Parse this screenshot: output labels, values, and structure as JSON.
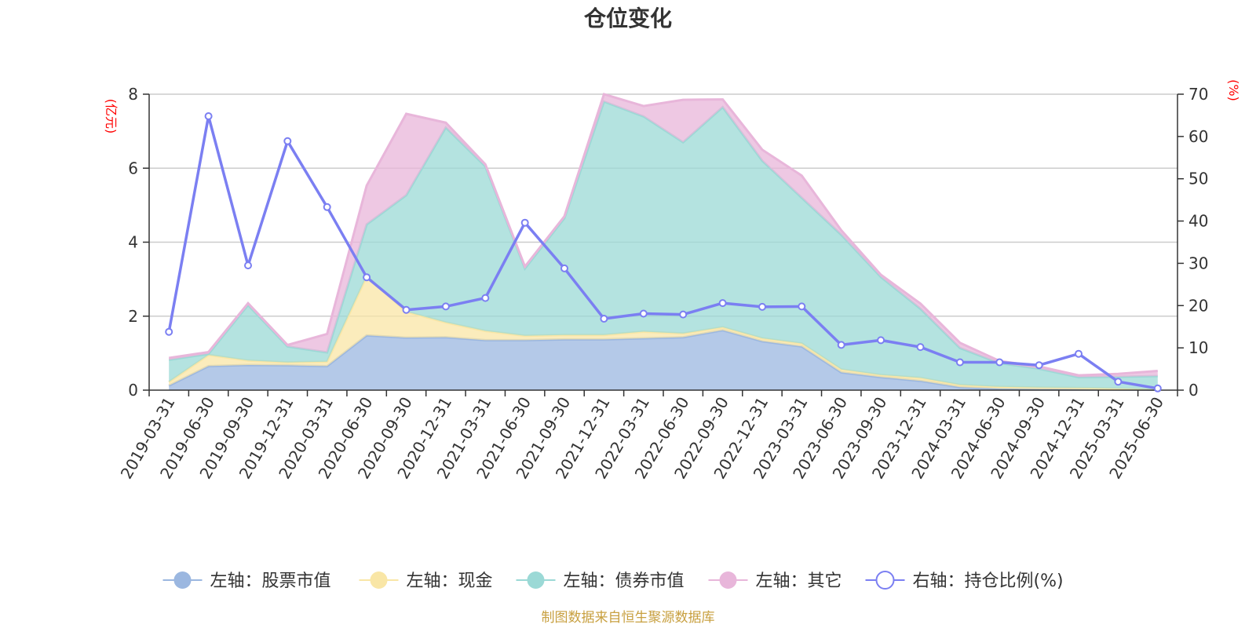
{
  "chart_data": {
    "type": "area",
    "title": "仓位变化",
    "left_axis_unit": "(亿元)",
    "right_axis_unit": "(%)",
    "left_ylim": [
      0,
      8
    ],
    "left_ticks": [
      0,
      2,
      4,
      6,
      8
    ],
    "right_ylim": [
      0,
      70
    ],
    "right_ticks": [
      0,
      10,
      20,
      30,
      40,
      50,
      60,
      70
    ],
    "categories": [
      "2019-03-31",
      "2019-06-30",
      "2019-09-30",
      "2019-12-31",
      "2020-03-31",
      "2020-06-30",
      "2020-09-30",
      "2020-12-31",
      "2021-03-31",
      "2021-06-30",
      "2021-09-30",
      "2021-12-31",
      "2022-03-31",
      "2022-06-30",
      "2022-09-30",
      "2022-12-31",
      "2023-03-31",
      "2023-06-30",
      "2023-09-30",
      "2023-12-31",
      "2024-03-31",
      "2024-06-30",
      "2024-09-30",
      "2024-12-31",
      "2025-03-31",
      "2025-06-30"
    ],
    "grid": true,
    "legend_position": "bottom",
    "series": [
      {
        "name": "左轴：股票市值",
        "axis": "left",
        "stacked": true,
        "color": "#9bb7e0",
        "values": [
          0.12,
          0.65,
          0.68,
          0.67,
          0.65,
          1.48,
          1.42,
          1.43,
          1.35,
          1.35,
          1.37,
          1.37,
          1.4,
          1.43,
          1.62,
          1.32,
          1.18,
          0.48,
          0.35,
          0.25,
          0.08,
          0.04,
          0.03,
          0.03,
          0.02,
          0.01
        ]
      },
      {
        "name": "左轴：现金",
        "axis": "left",
        "stacked": true,
        "color": "#f9e6a6",
        "values": [
          0.1,
          0.3,
          0.12,
          0.08,
          0.12,
          1.6,
          0.7,
          0.4,
          0.25,
          0.12,
          0.12,
          0.12,
          0.18,
          0.1,
          0.08,
          0.08,
          0.08,
          0.08,
          0.06,
          0.08,
          0.06,
          0.05,
          0.04,
          0.03,
          0.02,
          0.01
        ]
      },
      {
        "name": "左轴：债券市值",
        "axis": "left",
        "stacked": true,
        "color": "#9bd9d6",
        "values": [
          0.6,
          0.03,
          1.5,
          0.43,
          0.25,
          1.4,
          3.15,
          5.27,
          4.45,
          1.82,
          3.16,
          6.31,
          5.82,
          5.17,
          5.95,
          4.8,
          3.94,
          3.64,
          2.65,
          1.87,
          1.0,
          0.64,
          0.51,
          0.29,
          0.32,
          0.36
        ]
      },
      {
        "name": "左轴：其它",
        "axis": "left",
        "stacked": true,
        "color": "#e8b6da",
        "values": [
          0.05,
          0.05,
          0.05,
          0.04,
          0.5,
          1.05,
          2.2,
          0.13,
          0.05,
          0.05,
          0.05,
          0.2,
          0.28,
          1.15,
          0.21,
          0.3,
          0.6,
          0.12,
          0.06,
          0.14,
          0.14,
          0.06,
          0.06,
          0.05,
          0.08,
          0.14
        ]
      },
      {
        "name": "右轴：持仓比例(%)",
        "axis": "right",
        "stacked": false,
        "color": "#7b7ff2",
        "values": [
          13.8,
          64.8,
          29.5,
          58.9,
          43.3,
          26.7,
          19.0,
          19.8,
          21.8,
          39.6,
          28.8,
          16.9,
          18.1,
          17.9,
          20.6,
          19.7,
          19.8,
          10.7,
          11.8,
          10.2,
          6.6,
          6.6,
          5.9,
          8.6,
          2.0,
          0.4
        ]
      }
    ]
  },
  "footer": "制图数据来自恒生聚源数据库"
}
